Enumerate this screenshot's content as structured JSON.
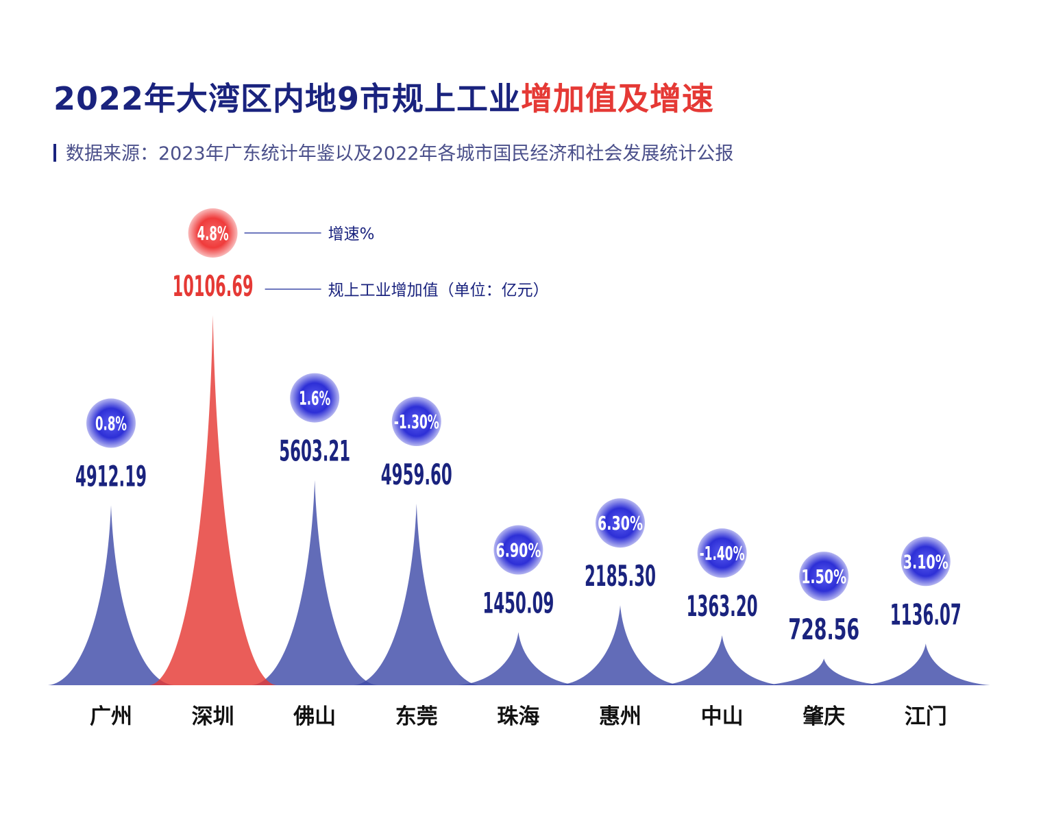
{
  "title_part1": "2022年大湾区内地9市规上工业",
  "title_part2": "增加值及增速",
  "source_text": "数据来源：2023年广东统计年鉴以及2022年各城市国民经济和社会发展统计公报",
  "colors": {
    "blue": "#1a237e",
    "blue_fill": "#3f4ca8",
    "red": "#e53935",
    "red_fill": "#e53935",
    "circle_blue": "#2d2fd6",
    "circle_red": "#ef3b3b"
  },
  "chart_data": {
    "type": "area",
    "title": "2022年大湾区内地9市规上工业增加值及增速",
    "categories": [
      "广州",
      "深圳",
      "佛山",
      "东莞",
      "珠海",
      "惠州",
      "中山",
      "肇庆",
      "江门"
    ],
    "value_labels": [
      "4912.19",
      "10106.69",
      "5603.21",
      "4959.60",
      "1450.09",
      "2185.30",
      "1363.20",
      "728.56",
      "1136.07"
    ],
    "growth_labels": [
      "0.8%",
      "4.8%",
      "1.6%",
      "-1.30%",
      "6.90%",
      "6.30%",
      "-1.40%",
      "1.50%",
      "3.10%"
    ],
    "series": [
      {
        "name": "规上工业增加值（单位：亿元）",
        "values": [
          4912.19,
          10106.69,
          5603.21,
          4959.6,
          1450.09,
          2185.3,
          1363.2,
          728.56,
          1136.07
        ]
      },
      {
        "name": "增速%",
        "values": [
          0.8,
          4.8,
          1.6,
          -1.3,
          6.9,
          6.3,
          -1.4,
          1.5,
          3.1
        ]
      }
    ],
    "highlight": "深圳",
    "legend": {
      "growth": "增速%",
      "value": "规上工业增加值（单位：亿元）"
    },
    "legend_position": "top",
    "ylim": [
      0,
      10106.69
    ]
  }
}
